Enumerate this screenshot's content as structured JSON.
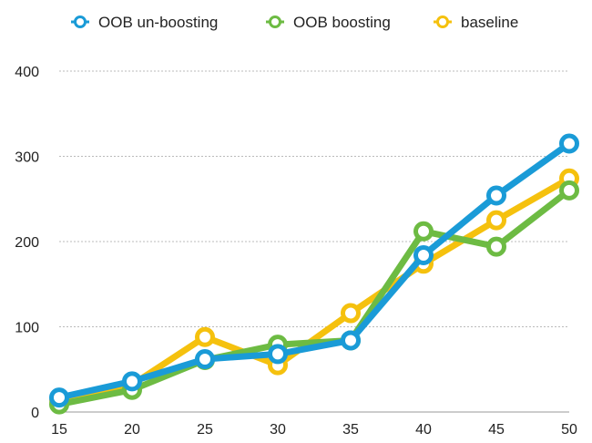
{
  "chart_data": {
    "type": "line",
    "x": [
      15,
      20,
      25,
      30,
      35,
      40,
      45,
      50
    ],
    "ylim": [
      0,
      400
    ],
    "yticks": [
      0,
      100,
      200,
      300,
      400
    ],
    "xticks": [
      15,
      20,
      25,
      30,
      35,
      40,
      45,
      50
    ],
    "grid": "horizontal dotted",
    "legend_position": "top",
    "series": [
      {
        "name": "OOB un-boosting",
        "color": "#1a9bd7",
        "values": [
          17,
          36,
          62,
          68,
          84,
          184,
          254,
          315
        ]
      },
      {
        "name": "OOB boosting",
        "color": "#6dbb43",
        "values": [
          9,
          26,
          61,
          79,
          84,
          212,
          194,
          260
        ]
      },
      {
        "name": "baseline",
        "color": "#f5c10e",
        "values": [
          14,
          32,
          88,
          55,
          116,
          174,
          225,
          274
        ]
      }
    ]
  }
}
